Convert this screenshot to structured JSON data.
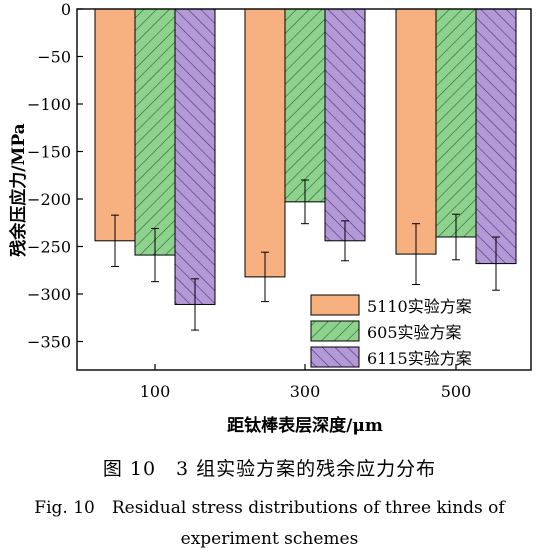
{
  "chart_data": {
    "type": "bar",
    "ylabel": "残余压应力/MPa",
    "xlabel": "距钛棒表层深度/μm",
    "categories": [
      "100",
      "300",
      "500"
    ],
    "ylim": [
      -380,
      0
    ],
    "yticks": [
      0,
      -50,
      -100,
      -150,
      -200,
      -250,
      -300,
      -350
    ],
    "legend_position": "bottom-right",
    "series": [
      {
        "name": "5110实验方案",
        "color": "#f7b07f",
        "pattern": "solid",
        "values": [
          -244,
          -282,
          -258
        ],
        "errors": [
          27,
          26,
          32
        ]
      },
      {
        "name": "605实验方案",
        "color": "#8fd28f",
        "pattern": "forward-hatch",
        "values": [
          -259,
          -203,
          -240
        ],
        "errors": [
          28,
          23,
          24
        ]
      },
      {
        "name": "6115实验方案",
        "color": "#b39ad6",
        "pattern": "back-hatch",
        "values": [
          -311,
          -244,
          -268
        ],
        "errors": [
          27,
          21,
          28
        ]
      }
    ]
  },
  "caption": {
    "zh": "图 10　3 组实验方案的残余应力分布",
    "en": "Fig. 10　Residual stress distributions of three kinds of experiment schemes"
  }
}
